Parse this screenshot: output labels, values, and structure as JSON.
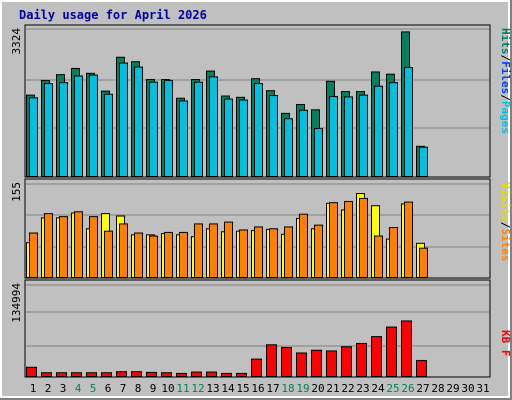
{
  "chart_data": [
    {
      "type": "bar",
      "title": "Daily usage for April 2026",
      "panel": "top",
      "ytick_label": "3324",
      "ylim": [
        0,
        3324
      ],
      "legend": [
        {
          "label": "Pages",
          "color": "#00c0e0"
        },
        {
          "label": "Files",
          "color": "#0040ff"
        },
        {
          "label": "Hits",
          "color": "#008060"
        }
      ],
      "categories": [
        "1",
        "2",
        "3",
        "4",
        "5",
        "6",
        "7",
        "8",
        "9",
        "10",
        "11",
        "12",
        "13",
        "14",
        "15",
        "16",
        "17",
        "18",
        "19",
        "20",
        "21",
        "22",
        "23",
        "24",
        "25",
        "26",
        "27",
        "28",
        "29",
        "30",
        "31"
      ],
      "series": [
        {
          "name": "Hits",
          "values": [
            1850,
            2180,
            2310,
            2450,
            2340,
            1940,
            2700,
            2600,
            2200,
            2200,
            1780,
            2200,
            2390,
            1830,
            1800,
            2220,
            1950,
            1440,
            1640,
            1520,
            2160,
            1930,
            1930,
            2370,
            2320,
            3270,
            700,
            0,
            0,
            0,
            0
          ]
        },
        {
          "name": "Files",
          "values": [
            1600,
            1600,
            1600,
            1400,
            1600,
            1400,
            1600,
            1600,
            1600,
            1400,
            1400,
            1400,
            1700,
            1200,
            1200,
            1300,
            1100,
            1000,
            1100,
            900,
            1200,
            1200,
            1200,
            1400,
            1500,
            1700,
            500,
            0,
            0,
            0,
            0
          ]
        },
        {
          "name": "Pages",
          "values": [
            1790,
            2110,
            2130,
            2280,
            2300,
            1870,
            2570,
            2480,
            2140,
            2180,
            1720,
            2140,
            2260,
            1760,
            1740,
            2110,
            1840,
            1320,
            1510,
            1100,
            1820,
            1810,
            1850,
            2050,
            2130,
            2470,
            680,
            0,
            0,
            0,
            0
          ]
        }
      ]
    },
    {
      "type": "bar",
      "panel": "middle",
      "ytick_label": "155",
      "ylim": [
        0,
        155
      ],
      "legend": [
        {
          "label": "Sites",
          "color": "#ff8000"
        },
        {
          "label": "Visits",
          "color": "#ffff00"
        }
      ],
      "categories": [
        "1",
        "2",
        "3",
        "4",
        "5",
        "6",
        "7",
        "8",
        "9",
        "10",
        "11",
        "12",
        "13",
        "14",
        "15",
        "16",
        "17",
        "18",
        "19",
        "20",
        "21",
        "22",
        "23",
        "24",
        "25",
        "26",
        "27",
        "28",
        "29",
        "30",
        "31"
      ],
      "series": [
        {
          "name": "Visits",
          "values": [
            59,
            100,
            100,
            108,
            82,
            107,
            103,
            72,
            72,
            74,
            72,
            69,
            82,
            77,
            78,
            79,
            81,
            73,
            99,
            82,
            124,
            113,
            140,
            120,
            65,
            123,
            58,
            0,
            0,
            0,
            0
          ]
        },
        {
          "name": "Sites",
          "values": [
            75,
            107,
            102,
            110,
            102,
            78,
            90,
            75,
            70,
            76,
            76,
            90,
            90,
            93,
            80,
            85,
            82,
            85,
            106,
            88,
            125,
            127,
            132,
            70,
            84,
            126,
            50,
            0,
            0,
            0,
            0
          ]
        }
      ]
    },
    {
      "type": "bar",
      "panel": "bottom",
      "ytick_label": "134994",
      "ylim": [
        0,
        134994
      ],
      "legend": [
        {
          "label": "KB F",
          "color": "#ff0000"
        }
      ],
      "categories": [
        "1",
        "2",
        "3",
        "4",
        "5",
        "6",
        "7",
        "8",
        "9",
        "10",
        "11",
        "12",
        "13",
        "14",
        "15",
        "16",
        "17",
        "18",
        "19",
        "20",
        "21",
        "22",
        "23",
        "24",
        "25",
        "26",
        "27",
        "28",
        "29",
        "30",
        "31"
      ],
      "series": [
        {
          "name": "KB F",
          "values": [
            15000,
            7000,
            7000,
            7000,
            7000,
            7000,
            8500,
            8500,
            7500,
            7000,
            6000,
            8000,
            8000,
            6000,
            6000,
            27000,
            48000,
            44000,
            36000,
            40000,
            39000,
            45000,
            50000,
            60000,
            74000,
            83000,
            25000,
            0,
            0,
            0,
            0
          ]
        }
      ],
      "weekend_days": [
        "4",
        "5",
        "11",
        "12",
        "18",
        "19",
        "25",
        "26"
      ]
    }
  ]
}
